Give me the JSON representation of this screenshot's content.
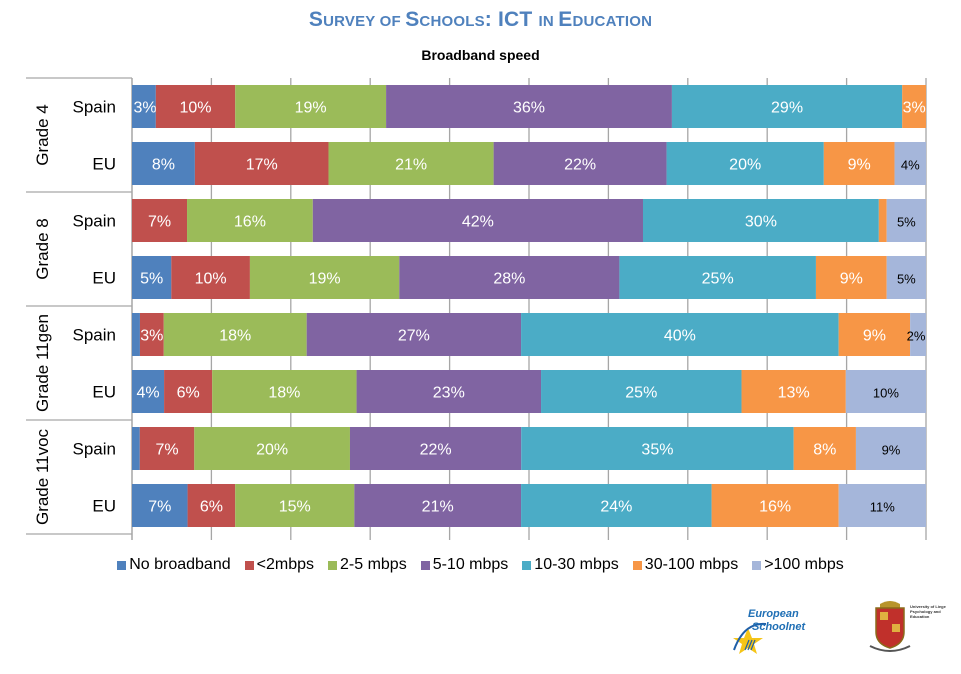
{
  "header": {
    "title_parts": [
      {
        "text": "S",
        "small": false
      },
      {
        "text": "URVEY OF ",
        "small": true
      },
      {
        "text": "S",
        "small": false
      },
      {
        "text": "CHOOLS",
        "small": true
      },
      {
        "text": ": ICT ",
        "small": false
      },
      {
        "text": "IN ",
        "small": true
      },
      {
        "text": "E",
        "small": false
      },
      {
        "text": "DUCATION",
        "small": true
      }
    ],
    "title_full": "Survey of Schools: ICT in Education"
  },
  "logos": {
    "esn_line1": "European",
    "esn_line2": "Schoolnet",
    "university_caption": "University of Liege Psychology and Education"
  },
  "chart_data": {
    "type": "bar",
    "orientation": "horizontal",
    "stacked": "100%",
    "title": "Broadband speed",
    "xlim": [
      0,
      100
    ],
    "grid": false,
    "legend_position": "bottom",
    "groups": [
      {
        "label": "Grade 4",
        "rows": [
          "Spain",
          "EU"
        ]
      },
      {
        "label": "Grade 8",
        "rows": [
          "Spain",
          "EU"
        ]
      },
      {
        "label": "Grade 11gen",
        "rows": [
          "Spain",
          "EU"
        ]
      },
      {
        "label": "Grade 11voc",
        "rows": [
          "Spain",
          "EU"
        ]
      }
    ],
    "categories": [
      "Grade 4 - Spain",
      "Grade 4 - EU",
      "Grade 8 - Spain",
      "Grade 8 - EU",
      "Grade 11gen - Spain",
      "Grade 11gen - EU",
      "Grade 11voc - Spain",
      "Grade 11voc - EU"
    ],
    "series": [
      {
        "name": "No broadband",
        "color": "#4f81bd",
        "values": [
          3,
          8,
          0,
          5,
          1,
          4,
          1,
          7
        ],
        "labels": [
          "3%",
          "8%",
          "",
          "5%",
          "",
          "4%",
          "",
          "7%"
        ]
      },
      {
        "name": "<2mbps",
        "color": "#c0504d",
        "values": [
          10,
          17,
          7,
          10,
          3,
          6,
          7,
          6
        ],
        "labels": [
          "10%",
          "17%",
          "7%",
          "10%",
          "3%",
          "6%",
          "7%",
          "6%"
        ]
      },
      {
        "name": "2-5 mbps",
        "color": "#9bbb59",
        "values": [
          19,
          21,
          16,
          19,
          18,
          18,
          20,
          15
        ],
        "labels": [
          "19%",
          "21%",
          "16%",
          "19%",
          "18%",
          "18%",
          "20%",
          "15%"
        ]
      },
      {
        "name": "5-10 mbps",
        "color": "#8064a2",
        "values": [
          36,
          22,
          42,
          28,
          27,
          23,
          22,
          21
        ],
        "labels": [
          "36%",
          "22%",
          "42%",
          "28%",
          "27%",
          "23%",
          "22%",
          "21%"
        ]
      },
      {
        "name": "10-30 mbps",
        "color": "#4bacc6",
        "values": [
          29,
          20,
          30,
          25,
          40,
          25,
          35,
          24
        ],
        "labels": [
          "29%",
          "20%",
          "30%",
          "25%",
          "40%",
          "25%",
          "35%",
          "24%"
        ]
      },
      {
        "name": "30-100 mbps",
        "color": "#f79646",
        "values": [
          3,
          9,
          1,
          9,
          9,
          13,
          8,
          16
        ],
        "labels": [
          "3%",
          "9%",
          "",
          "9%",
          "9%",
          "13%",
          "8%",
          "16%"
        ]
      },
      {
        "name": ">100 mbps",
        "color": "#a5b6da",
        "values": [
          0,
          4,
          5,
          5,
          2,
          10,
          9,
          11
        ],
        "labels": [
          "",
          "4%",
          "5%",
          "5%",
          "2%",
          "10%",
          "9%",
          "11%"
        ]
      }
    ]
  }
}
